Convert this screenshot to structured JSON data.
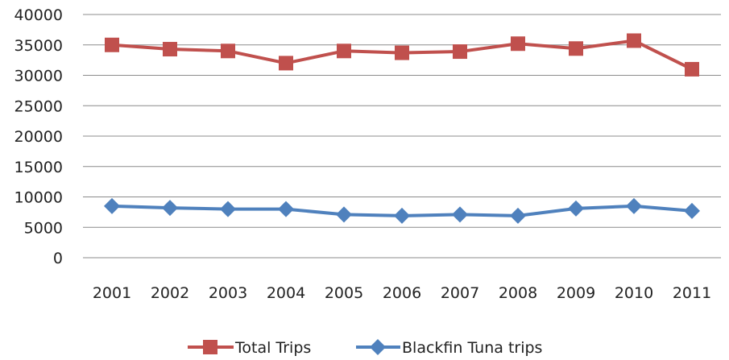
{
  "chart_data": {
    "type": "line",
    "categories": [
      "2001",
      "2002",
      "2003",
      "2004",
      "2005",
      "2006",
      "2007",
      "2008",
      "2009",
      "2010",
      "2011"
    ],
    "series": [
      {
        "name": "Total Trips",
        "color": "#c0504d",
        "marker": "square",
        "values": [
          35000,
          34300,
          34000,
          32000,
          34000,
          33700,
          33900,
          35200,
          34400,
          35700,
          31000
        ]
      },
      {
        "name": "Blackfin Tuna trips",
        "color": "#4f81bd",
        "marker": "diamond",
        "values": [
          8500,
          8200,
          8000,
          8000,
          7100,
          6900,
          7100,
          6900,
          8100,
          8500,
          7700
        ]
      }
    ],
    "ylim": [
      0,
      40000
    ],
    "yticks": [
      0,
      5000,
      10000,
      15000,
      20000,
      25000,
      30000,
      35000,
      40000
    ],
    "grid": true,
    "legend_position": "bottom",
    "title": "",
    "xlabel": "",
    "ylabel": ""
  }
}
